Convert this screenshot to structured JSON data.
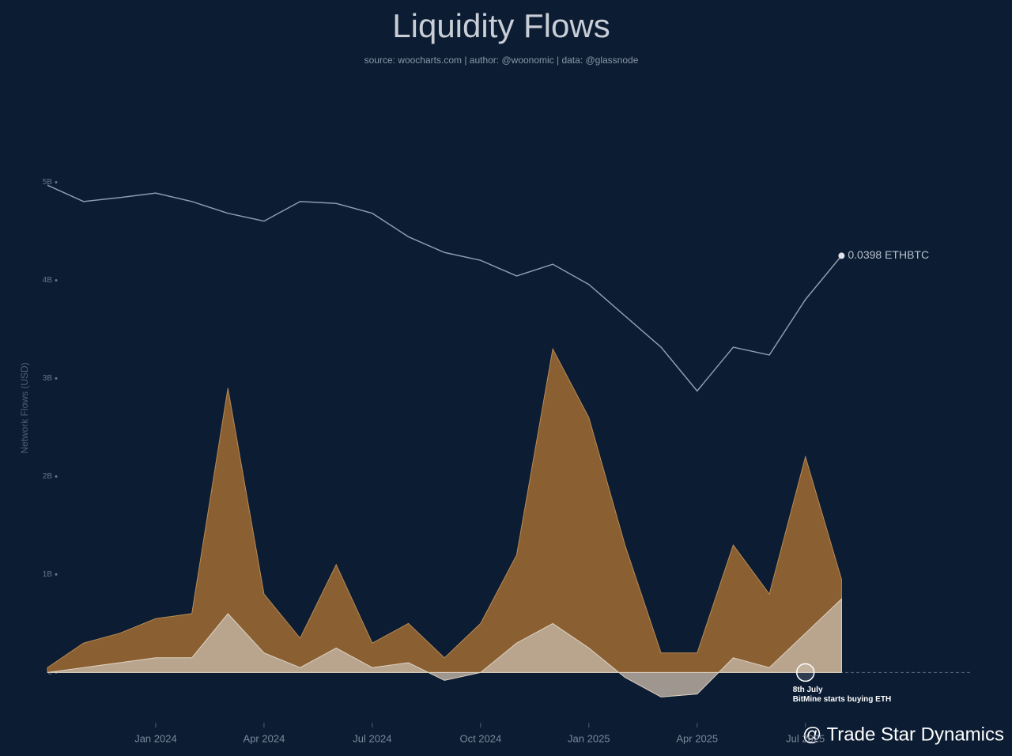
{
  "chart_data": {
    "type": "area",
    "title": "Liquidity Flows",
    "subtitle": "source: woocharts.com | author: @woonomic | data: @glassnode",
    "y_label": "Network Flows (USD)",
    "x": [
      "2023-10",
      "2023-11",
      "2023-12",
      "2024-01",
      "2024-02",
      "2024-03",
      "2024-04",
      "2024-05",
      "2024-06",
      "2024-07",
      "2024-08",
      "2024-09",
      "2024-10",
      "2024-11",
      "2024-12",
      "2025-01",
      "2025-02",
      "2025-03",
      "2025-04",
      "2025-05",
      "2025-06",
      "2025-07",
      "2025-08"
    ],
    "xlim": [
      "2023-10",
      "2025-12"
    ],
    "xticks": [
      {
        "value": "2024-01",
        "label": "Jan 2024"
      },
      {
        "value": "2024-04",
        "label": "Apr 2024"
      },
      {
        "value": "2024-07",
        "label": "Jul 2024"
      },
      {
        "value": "2024-10",
        "label": "Oct 2024"
      },
      {
        "value": "2025-01",
        "label": "Jan 2025"
      },
      {
        "value": "2025-04",
        "label": "Apr 2025"
      },
      {
        "value": "2025-07",
        "label": "Jul 2025"
      }
    ],
    "ylim": [
      -400000000,
      5730000000
    ],
    "yticks": [
      0,
      {
        "value": 1000000000,
        "label": "1B"
      },
      {
        "value": 2000000000,
        "label": "2B"
      },
      {
        "value": 3000000000,
        "label": "3B"
      },
      {
        "value": 4000000000,
        "label": "4B"
      },
      {
        "value": 5000000000,
        "label": "5B"
      }
    ],
    "y2lim": [
      -0.03,
      0.062
    ],
    "series": [
      {
        "color": "#8a5f31",
        "values": [
          50000000,
          300000000,
          400000000,
          550000000,
          600000000,
          2900000000,
          800000000,
          350000000,
          1100000000,
          300000000,
          500000000,
          150000000,
          500000000,
          1200000000,
          3300000000,
          2600000000,
          1300000000,
          200000000,
          200000000,
          1300000000,
          800000000,
          2200000000,
          950000000
        ]
      },
      {
        "color": "#c4b6a6",
        "values": [
          0,
          50000000,
          100000000,
          150000000,
          150000000,
          600000000,
          200000000,
          50000000,
          250000000,
          50000000,
          100000000,
          -80000000,
          0,
          300000000,
          500000000,
          250000000,
          -50000000,
          -250000000,
          -220000000,
          150000000,
          50000000,
          400000000,
          750000000
        ]
      },
      {
        "color": "#8e9bb0",
        "axis": "y2",
        "values": [
          0.0506,
          0.0481,
          0.0487,
          0.0494,
          0.0481,
          0.0463,
          0.0451,
          0.0481,
          0.0478,
          0.0463,
          0.0427,
          0.0403,
          0.0391,
          0.0367,
          0.0385,
          0.0354,
          0.0306,
          0.0258,
          0.0191,
          0.0258,
          0.0246,
          0.0331,
          0.0398
        ],
        "value_labels": [
          null,
          null,
          null,
          null,
          null,
          null,
          null,
          null,
          null,
          null,
          null,
          null,
          null,
          null,
          null,
          null,
          null,
          null,
          null,
          null,
          null,
          null,
          "0.0398 ETHBTC"
        ]
      }
    ],
    "annotations": [
      {
        "x": "2025-07",
        "y": 0,
        "title": "8th July",
        "text": "BitMine starts buying ETH"
      }
    ],
    "watermark": "@ Trade Star Dynamics"
  }
}
